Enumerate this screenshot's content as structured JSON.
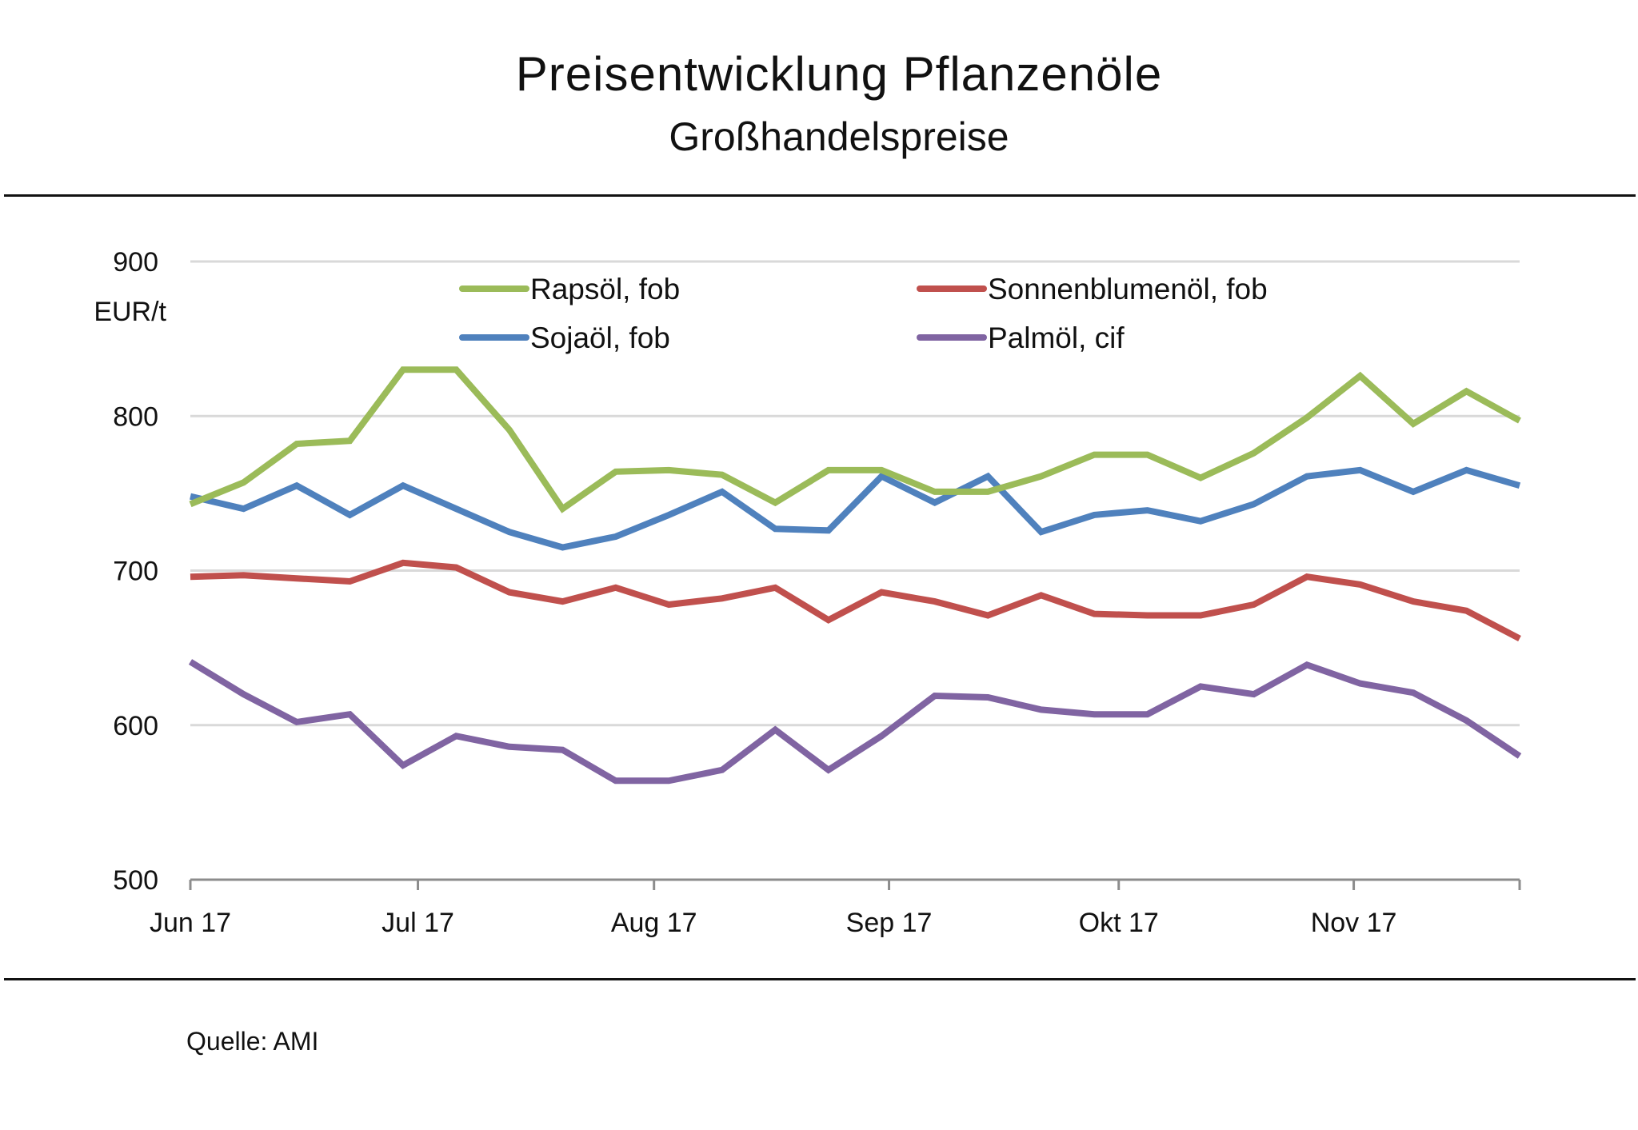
{
  "header": {
    "title": "Preisentwicklung Pflanzenöle",
    "subtitle": "Großhandelspreise"
  },
  "footer": {
    "source": "Quelle: AMI"
  },
  "chart_data": {
    "type": "line",
    "title": "Preisentwicklung Pflanzenöle",
    "subtitle": "Großhandelspreise",
    "xlabel": "",
    "ylabel": "EUR/t",
    "ylim": [
      500,
      900
    ],
    "yticks": [
      500,
      600,
      700,
      800,
      900
    ],
    "grid": true,
    "legend_position": "top-center",
    "x_count": 26,
    "x_ticks": [
      {
        "label": "Jun 17",
        "pos": 0
      },
      {
        "label": "Jul 17",
        "pos": 4.28
      },
      {
        "label": "Aug 17",
        "pos": 8.72
      },
      {
        "label": "Sep 17",
        "pos": 13.14
      },
      {
        "label": "Okt 17",
        "pos": 17.46
      },
      {
        "label": "Nov 17",
        "pos": 21.88
      }
    ],
    "series": [
      {
        "name": "Rapsöl, fob",
        "color": "#9BBB59",
        "values": [
          743,
          757,
          782,
          784,
          830,
          830,
          791,
          740,
          764,
          765,
          762,
          744,
          765,
          765,
          751,
          751,
          761,
          775,
          775,
          760,
          776,
          799,
          826,
          795,
          816,
          797
        ]
      },
      {
        "name": "Sonnenblumenöl, fob",
        "color": "#C0504D",
        "values": [
          696,
          697,
          695,
          693,
          705,
          702,
          686,
          680,
          689,
          678,
          682,
          689,
          668,
          686,
          680,
          671,
          684,
          672,
          671,
          671,
          678,
          696,
          691,
          680,
          674,
          656
        ]
      },
      {
        "name": "Sojaöl, fob",
        "color": "#4F81BD",
        "values": [
          748,
          740,
          755,
          736,
          755,
          740,
          725,
          715,
          722,
          736,
          751,
          727,
          726,
          761,
          744,
          761,
          725,
          736,
          739,
          732,
          743,
          761,
          765,
          751,
          765,
          755
        ]
      },
      {
        "name": "Palmöl, cif",
        "color": "#8064A2",
        "values": [
          641,
          620,
          602,
          607,
          574,
          593,
          586,
          584,
          564,
          564,
          571,
          597,
          571,
          593,
          619,
          618,
          610,
          607,
          607,
          625,
          620,
          639,
          627,
          621,
          603,
          580
        ]
      }
    ]
  }
}
